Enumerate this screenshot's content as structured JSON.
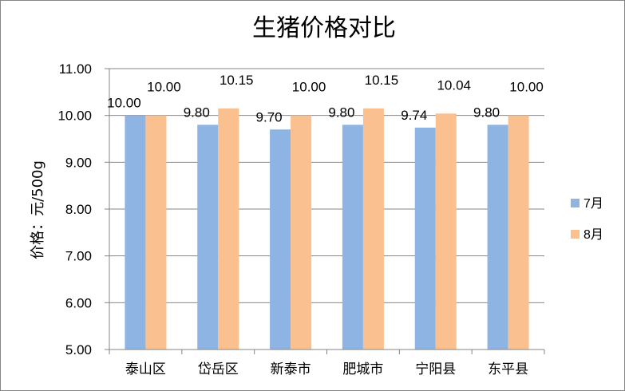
{
  "chart_data": {
    "type": "bar",
    "title": "生猪价格对比",
    "ylabel": "价格：元/500g",
    "xlabel": "",
    "categories": [
      "泰山区",
      "岱岳区",
      "新泰市",
      "肥城市",
      "宁阳县",
      "东平县"
    ],
    "series": [
      {
        "name": "7月",
        "color": "#8eb4e3",
        "values": [
          10.0,
          9.8,
          9.7,
          9.8,
          9.74,
          9.8
        ],
        "labels": [
          "10.00",
          "9.80",
          "9.70",
          "9.80",
          "9.74",
          "9.80"
        ]
      },
      {
        "name": "8月",
        "color": "#fac090",
        "values": [
          10.0,
          10.15,
          10.0,
          10.15,
          10.04,
          10.0
        ],
        "labels": [
          "10.00",
          "10.15",
          "10.00",
          "10.15",
          "10.04",
          "10.00"
        ]
      }
    ],
    "ylim": [
      5.0,
      11.0
    ],
    "yticks": [
      "5.00",
      "6.00",
      "7.00",
      "8.00",
      "9.00",
      "10.00",
      "11.00"
    ],
    "grid": true,
    "legend": "right"
  }
}
